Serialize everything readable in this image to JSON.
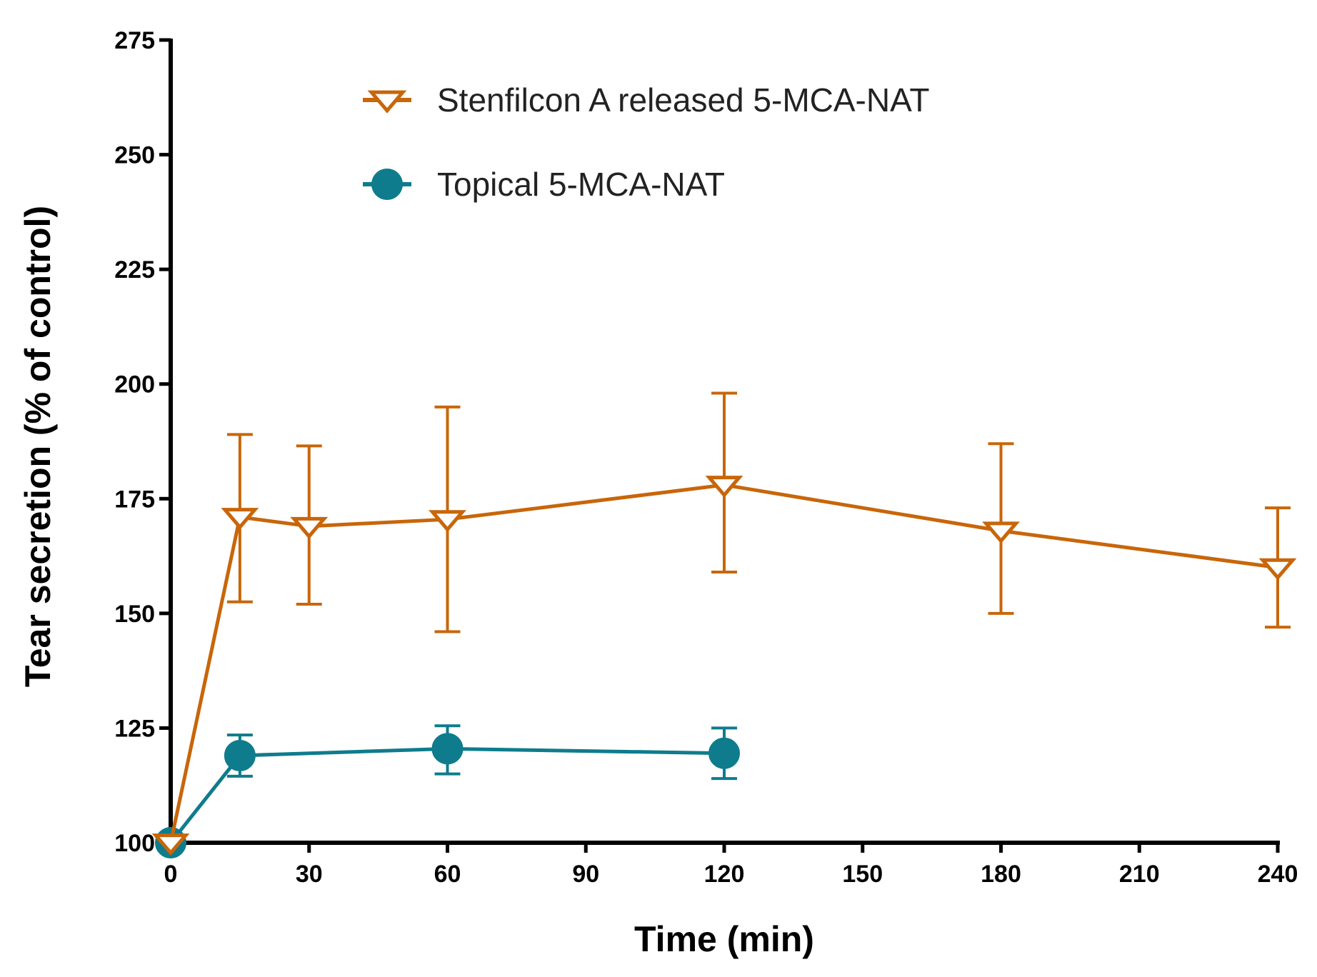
{
  "chart_data": {
    "type": "line",
    "title": "",
    "xlabel": "Time (min)",
    "ylabel": "Tear secretion (% of control)",
    "xlim": [
      0,
      240
    ],
    "ylim": [
      100,
      275
    ],
    "xticks": [
      0,
      30,
      60,
      90,
      120,
      150,
      180,
      210,
      240
    ],
    "yticks": [
      100,
      125,
      150,
      175,
      200,
      225,
      250,
      275
    ],
    "legend_position": "top-center",
    "series": [
      {
        "name": "Stenfilcon A released 5-MCA-NAT",
        "color": "#C8660A",
        "marker": "open-triangle-down",
        "x": [
          0,
          15,
          30,
          60,
          120,
          180,
          240
        ],
        "y": [
          100,
          171,
          169,
          170.5,
          178,
          168,
          160
        ],
        "err_high": [
          100,
          189,
          186.5,
          195,
          198,
          187,
          173
        ],
        "err_low": [
          100,
          152.5,
          152,
          146,
          159,
          150,
          147
        ]
      },
      {
        "name": "Topical 5-MCA-NAT",
        "color": "#0E7C8C",
        "marker": "filled-circle",
        "x": [
          0,
          15,
          60,
          120
        ],
        "y": [
          100,
          119,
          120.5,
          119.5
        ],
        "err_high": [
          100,
          123.5,
          125.5,
          125
        ],
        "err_low": [
          100,
          114.5,
          115,
          114
        ]
      }
    ]
  }
}
